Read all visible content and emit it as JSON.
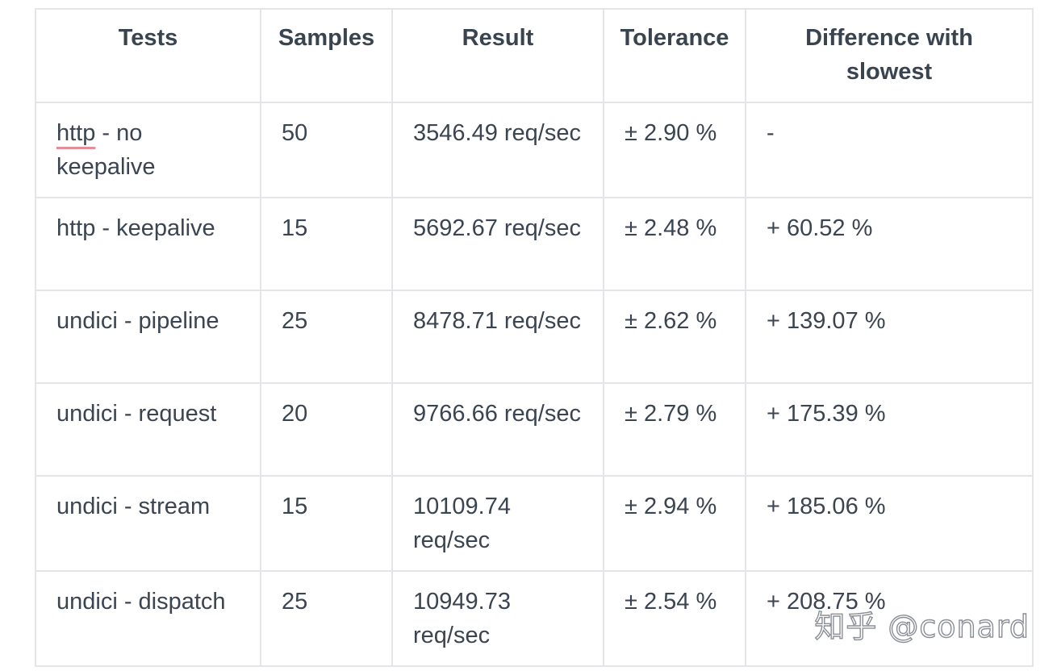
{
  "table": {
    "headers": [
      "Tests",
      "Samples",
      "Result",
      "Tolerance",
      "Difference with slowest"
    ],
    "rows": [
      {
        "test_word": "http",
        "test_rest": " - no keepalive",
        "samples": "50",
        "result": "3546.49 req/sec",
        "tolerance": "± 2.90 %",
        "difference": "-"
      },
      {
        "test": "http - keepalive",
        "samples": "15",
        "result": "5692.67 req/sec",
        "tolerance": "± 2.48 %",
        "difference": "+ 60.52 %"
      },
      {
        "test": "undici - pipeline",
        "samples": "25",
        "result": "8478.71 req/sec",
        "tolerance": "± 2.62 %",
        "difference": "+ 139.07 %"
      },
      {
        "test": "undici - request",
        "samples": "20",
        "result": "9766.66 req/sec",
        "tolerance": "± 2.79 %",
        "difference": "+ 175.39 %"
      },
      {
        "test": "undici - stream",
        "samples": "15",
        "result": "10109.74 req/sec",
        "tolerance": "± 2.94 %",
        "difference": "+ 185.06 %"
      },
      {
        "test": "undici - dispatch",
        "samples": "25",
        "result": "10949.73 req/sec",
        "tolerance": "± 2.54 %",
        "difference": "+ 208.75 %"
      }
    ]
  },
  "watermark": "知乎 @conard",
  "colors": {
    "text": "#3b4451",
    "border": "#e3e5e8",
    "spellcheck_underline": "#e58e97"
  }
}
